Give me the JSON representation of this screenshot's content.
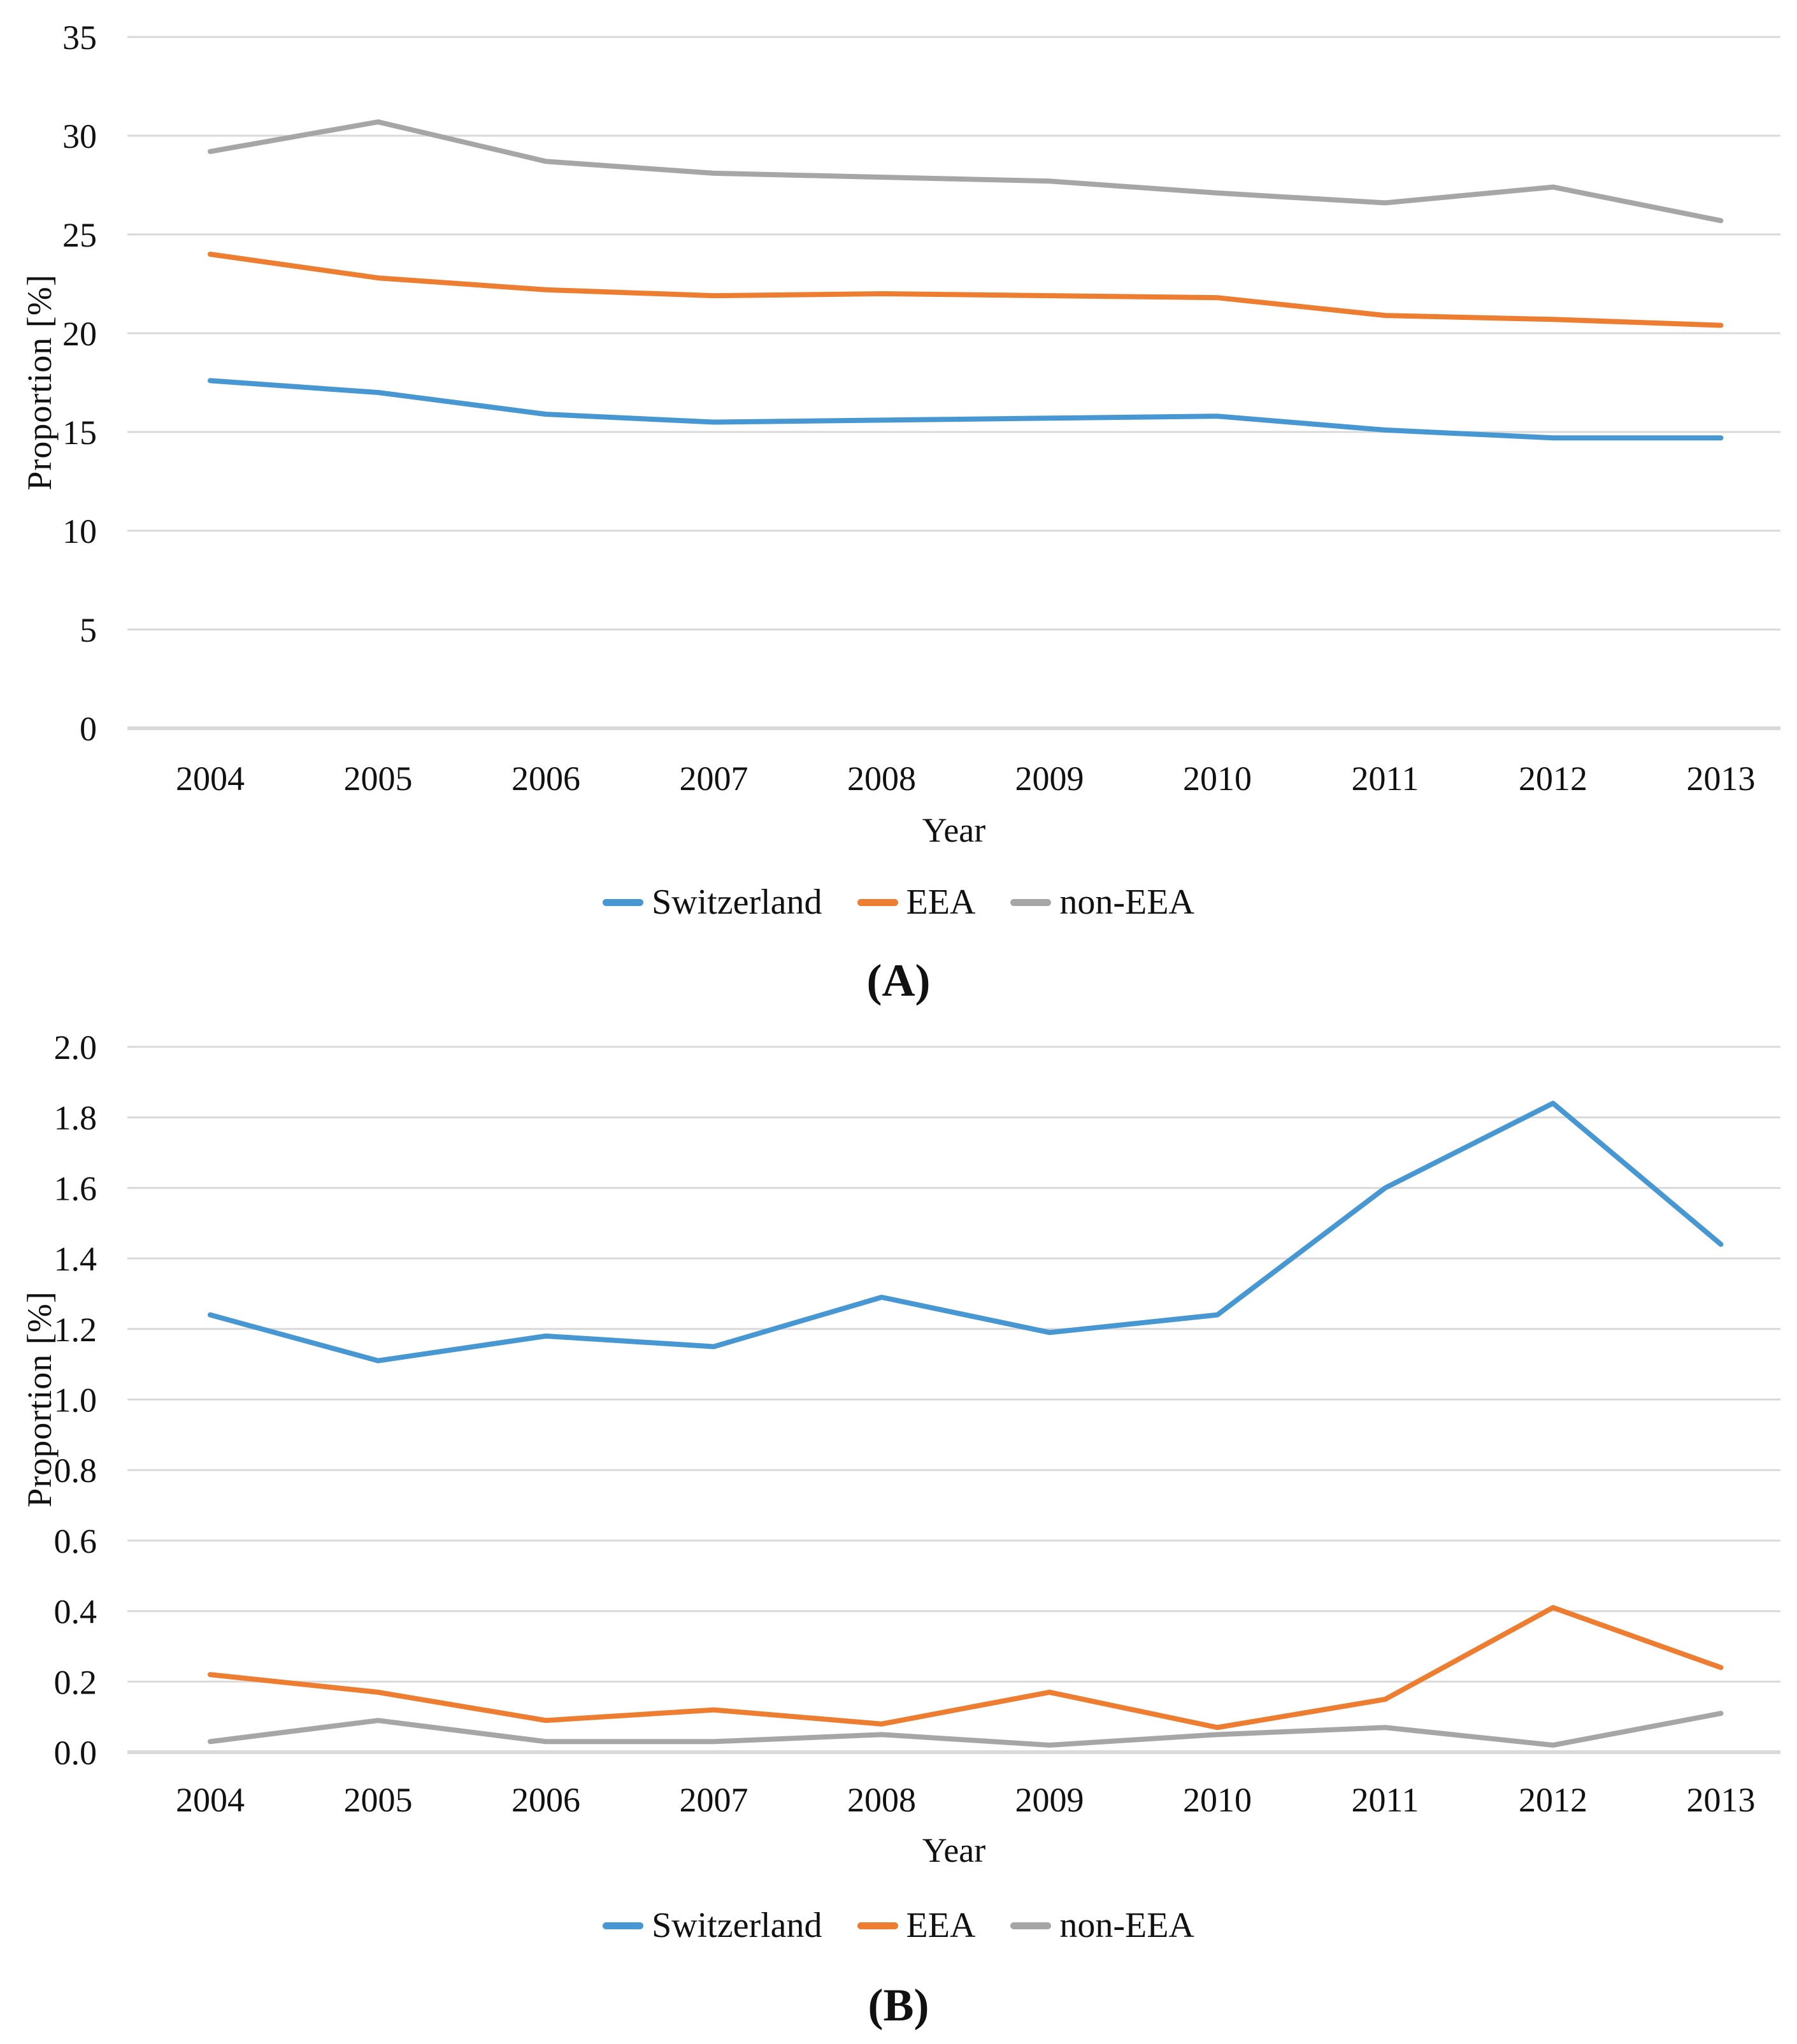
{
  "figure": {
    "panels": [
      {
        "label": "(A)"
      },
      {
        "label": "(B)"
      }
    ],
    "grid_color": "#D9D9D9",
    "text_color": "#111111"
  },
  "chart_data": [
    {
      "type": "line",
      "panel": "A",
      "title": "",
      "xlabel": "Year",
      "ylabel": "Proportion [%]",
      "categories": [
        "2004",
        "2005",
        "2006",
        "2007",
        "2008",
        "2009",
        "2010",
        "2011",
        "2012",
        "2013"
      ],
      "ylim": [
        0,
        35
      ],
      "ytick_labels": [
        "0",
        "5",
        "10",
        "15",
        "20",
        "25",
        "30",
        "35"
      ],
      "grid": true,
      "legend_position": "bottom",
      "series": [
        {
          "name": "Switzerland",
          "color": "#4797D2",
          "values": [
            17.6,
            17.0,
            15.9,
            15.5,
            15.6,
            15.7,
            15.8,
            15.1,
            14.7,
            14.7
          ]
        },
        {
          "name": "EEA",
          "color": "#ED7D31",
          "values": [
            24.0,
            22.8,
            22.2,
            21.9,
            22.0,
            21.9,
            21.8,
            20.9,
            20.7,
            20.4
          ]
        },
        {
          "name": "non-EEA",
          "color": "#A6A6A6",
          "values": [
            29.2,
            30.7,
            28.7,
            28.1,
            27.9,
            27.7,
            27.1,
            26.6,
            27.4,
            25.7
          ]
        }
      ]
    },
    {
      "type": "line",
      "panel": "B",
      "title": "",
      "xlabel": "Year",
      "ylabel": "Proportion [%]",
      "categories": [
        "2004",
        "2005",
        "2006",
        "2007",
        "2008",
        "2009",
        "2010",
        "2011",
        "2012",
        "2013"
      ],
      "ylim": [
        0,
        2.0
      ],
      "ytick_labels": [
        "0.0",
        "0.2",
        "0.4",
        "0.6",
        "0.8",
        "1.0",
        "1.2",
        "1.4",
        "1.6",
        "1.8",
        "2.0"
      ],
      "grid": true,
      "legend_position": "bottom",
      "series": [
        {
          "name": "Switzerland",
          "color": "#4797D2",
          "values": [
            1.24,
            1.11,
            1.18,
            1.15,
            1.29,
            1.19,
            1.24,
            1.6,
            1.84,
            1.44
          ]
        },
        {
          "name": "EEA",
          "color": "#ED7D31",
          "values": [
            0.22,
            0.17,
            0.09,
            0.12,
            0.08,
            0.17,
            0.07,
            0.15,
            0.41,
            0.24
          ]
        },
        {
          "name": "non-EEA",
          "color": "#A6A6A6",
          "values": [
            0.03,
            0.09,
            0.03,
            0.03,
            0.05,
            0.02,
            0.05,
            0.07,
            0.02,
            0.11
          ]
        }
      ]
    }
  ]
}
